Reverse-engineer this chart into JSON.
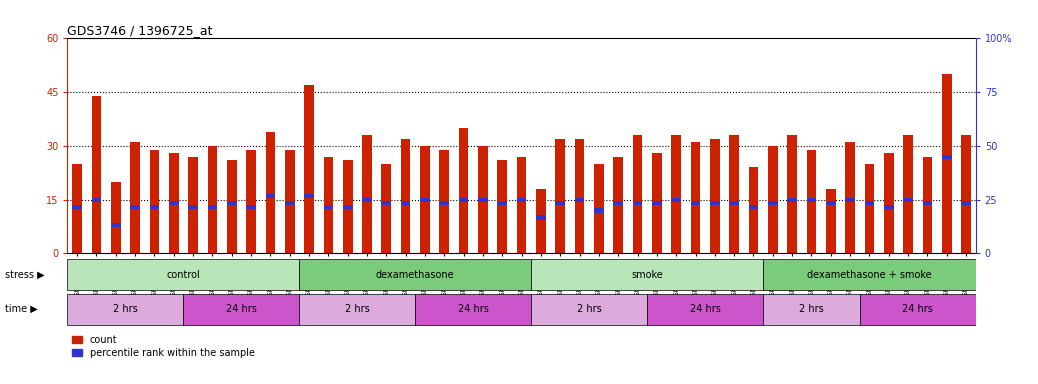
{
  "title": "GDS3746 / 1396725_at",
  "left_ylim": [
    0,
    60
  ],
  "right_ylim": [
    0,
    100
  ],
  "left_yticks": [
    0,
    15,
    30,
    45,
    60
  ],
  "right_yticks": [
    0,
    25,
    50,
    75,
    100
  ],
  "left_ylabel_color": "#cc2200",
  "right_ylabel_color": "#3333cc",
  "bar_color": "#cc2200",
  "marker_color": "#3333cc",
  "samples": [
    "GSM389536",
    "GSM389537",
    "GSM389538",
    "GSM389539",
    "GSM389540",
    "GSM389541",
    "GSM389530",
    "GSM389531",
    "GSM389532",
    "GSM389533",
    "GSM389534",
    "GSM389535",
    "GSM389560",
    "GSM389561",
    "GSM389562",
    "GSM389563",
    "GSM389564",
    "GSM389565",
    "GSM389554",
    "GSM389555",
    "GSM389556",
    "GSM389557",
    "GSM389558",
    "GSM389559",
    "GSM389571",
    "GSM389572",
    "GSM389573",
    "GSM389574",
    "GSM389575",
    "GSM389576",
    "GSM389566",
    "GSM389567",
    "GSM389568",
    "GSM389569",
    "GSM389570",
    "GSM389548",
    "GSM389549",
    "GSM389550",
    "GSM389551",
    "GSM389552",
    "GSM389553",
    "GSM389542",
    "GSM389543",
    "GSM389544",
    "GSM389545",
    "GSM389546",
    "GSM389547"
  ],
  "counts": [
    25,
    44,
    20,
    31,
    29,
    28,
    27,
    30,
    26,
    29,
    34,
    29,
    47,
    27,
    26,
    33,
    25,
    32,
    30,
    29,
    35,
    30,
    26,
    27,
    18,
    32,
    32,
    25,
    27,
    33,
    28,
    33,
    31,
    32,
    33,
    24,
    30,
    33,
    29,
    18,
    31,
    25,
    28,
    33,
    27,
    50,
    33
  ],
  "percentile_ranks": [
    13,
    15,
    8,
    13,
    13,
    14,
    13,
    13,
    14,
    13,
    16,
    14,
    16,
    13,
    13,
    15,
    14,
    14,
    15,
    14,
    15,
    15,
    14,
    15,
    10,
    14,
    15,
    12,
    14,
    14,
    14,
    15,
    14,
    14,
    14,
    13,
    14,
    15,
    15,
    14,
    15,
    14,
    13,
    15,
    14,
    27,
    14
  ],
  "stress_groups": [
    {
      "label": "control",
      "start": 0,
      "end": 12,
      "color": "#b8e6b8"
    },
    {
      "label": "dexamethasone",
      "start": 12,
      "end": 24,
      "color": "#7acc7a"
    },
    {
      "label": "smoke",
      "start": 24,
      "end": 36,
      "color": "#b8e6b8"
    },
    {
      "label": "dexamethasone + smoke",
      "start": 36,
      "end": 47,
      "color": "#7acc7a"
    }
  ],
  "time_groups": [
    {
      "label": "2 hrs",
      "start": 0,
      "end": 6,
      "color": "#ddaadd"
    },
    {
      "label": "24 hrs",
      "start": 6,
      "end": 12,
      "color": "#cc55cc"
    },
    {
      "label": "2 hrs",
      "start": 12,
      "end": 18,
      "color": "#ddaadd"
    },
    {
      "label": "24 hrs",
      "start": 18,
      "end": 24,
      "color": "#cc55cc"
    },
    {
      "label": "2 hrs",
      "start": 24,
      "end": 30,
      "color": "#ddaadd"
    },
    {
      "label": "24 hrs",
      "start": 30,
      "end": 36,
      "color": "#cc55cc"
    },
    {
      "label": "2 hrs",
      "start": 36,
      "end": 41,
      "color": "#ddaadd"
    },
    {
      "label": "24 hrs",
      "start": 41,
      "end": 47,
      "color": "#cc55cc"
    }
  ],
  "bg_color": "#ffffff",
  "tick_fontsize": 7,
  "label_fontsize": 7,
  "title_fontsize": 9,
  "bar_width": 0.5
}
